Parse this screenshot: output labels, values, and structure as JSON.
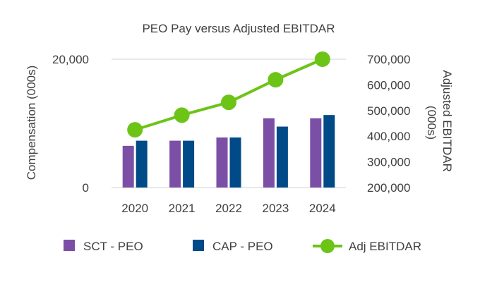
{
  "chart_data": {
    "type": "bar",
    "title": "PEO Pay versus Adjusted EBITDAR",
    "categories": [
      "2020",
      "2021",
      "2022",
      "2023",
      "2024"
    ],
    "series": [
      {
        "name": "SCT - PEO",
        "kind": "bar",
        "axis": "left",
        "color": "#7B4FA6",
        "values": [
          6500,
          7300,
          7800,
          10800,
          10800
        ]
      },
      {
        "name": "CAP - PEO",
        "kind": "bar",
        "axis": "left",
        "color": "#004B87",
        "values": [
          7300,
          7300,
          7800,
          9500,
          11300
        ]
      },
      {
        "name": "Adj EBITDAR",
        "kind": "line",
        "axis": "right",
        "color": "#6CC417",
        "values": [
          425000,
          482000,
          532000,
          620000,
          700000
        ]
      }
    ],
    "y_left": {
      "label": "Compensation (000s)",
      "range": [
        0,
        20000
      ],
      "ticks": [
        "0",
        "20,000"
      ],
      "tick_values": [
        0,
        20000
      ]
    },
    "y_right": {
      "label": "Adjusted EBITDAR (000s)",
      "label_lines": [
        "Adjusted EBITDAR",
        "(000s)"
      ],
      "range": [
        200000,
        700000
      ],
      "ticks": [
        "200,000",
        "300,000",
        "400,000",
        "500,000",
        "600,000",
        "700,000"
      ],
      "tick_values": [
        200000,
        300000,
        400000,
        500000,
        600000,
        700000
      ]
    },
    "grid": "horizontal at 0 and 20,000",
    "legend_position": "bottom"
  },
  "legend": {
    "items": [
      {
        "label": "SCT - PEO",
        "marker": "square",
        "color": "#7B4FA6"
      },
      {
        "label": "CAP - PEO",
        "marker": "square",
        "color": "#004B87"
      },
      {
        "label": "Adj EBITDAR",
        "marker": "line-dot",
        "color": "#6CC417"
      }
    ]
  },
  "colors": {
    "text": "#404040",
    "grid": "#D9D9D9"
  }
}
